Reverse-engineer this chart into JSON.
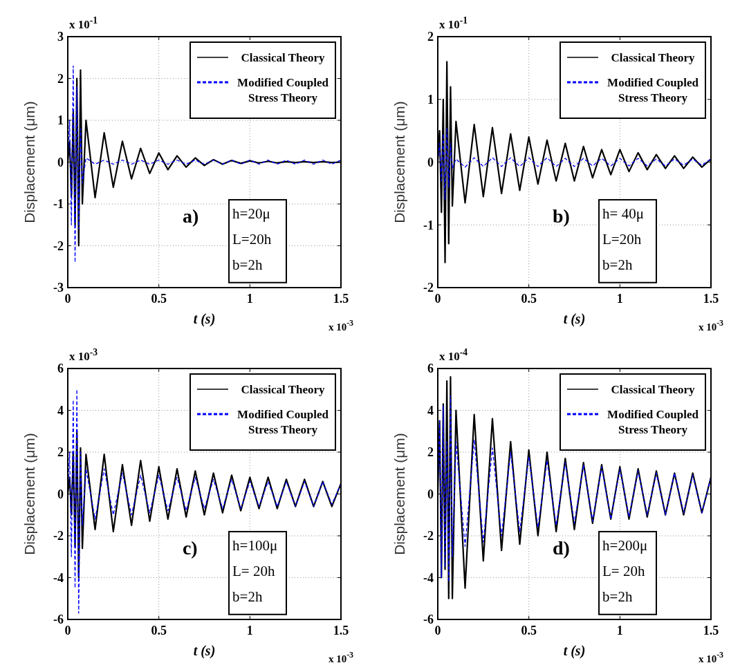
{
  "chart_data": [
    {
      "type": "line",
      "xlabel": "t (s)",
      "ylabel": "Displacement (μm)",
      "xlim": [
        0,
        1.5
      ],
      "xticks": [
        0,
        0.5,
        1,
        1.5
      ],
      "ylim": [
        -3,
        3
      ],
      "yticks": [
        -3,
        -2,
        -1,
        0,
        1,
        2,
        3
      ],
      "grid": true,
      "legend": "top right",
      "annotations": [
        "x 10$^{-1}$",
        "x 10$^{-3}$",
        "a)",
        "h=20μ",
        "L=20h",
        "b=2h"
      ],
      "x": [
        0,
        0.01,
        0.02,
        0.03,
        0.04,
        0.05,
        0.06,
        0.07,
        0.08,
        0.1,
        0.15,
        0.2,
        0.25,
        0.3,
        0.35,
        0.4,
        0.45,
        0.5,
        0.55,
        0.6,
        0.65,
        0.7,
        0.75,
        0.8,
        0.85,
        0.9,
        0.95,
        1.0,
        1.05,
        1.1,
        1.15,
        1.2,
        1.25,
        1.3,
        1.35,
        1.4,
        1.45,
        1.5
      ],
      "series": [
        {
          "name": "Classical Theory",
          "color": "#000000",
          "line_style": "solid",
          "values": [
            0,
            0.5,
            -0.8,
            1.2,
            -1.5,
            2.0,
            -2.0,
            2.2,
            -1.0,
            1.0,
            -0.85,
            0.7,
            -0.6,
            0.5,
            -0.4,
            0.33,
            -0.27,
            0.22,
            -0.18,
            0.15,
            -0.12,
            0.1,
            -0.08,
            0.06,
            -0.05,
            0.04,
            -0.03,
            0.03,
            -0.02,
            0.02,
            -0.02,
            0.01,
            -0.01,
            0.01,
            -0.01,
            0.01,
            -0.01,
            0
          ]
        },
        {
          "name": "Modified Coupled Stress Theory",
          "color": "#0000ff",
          "line_style": "dashed",
          "values": [
            0,
            1.0,
            -1.5,
            2.3,
            -2.4,
            1.8,
            -1.6,
            0.8,
            -0.5,
            0.1,
            -0.05,
            0.05,
            -0.05,
            0.05,
            -0.05,
            0.05,
            -0.05,
            0.05,
            -0.05,
            0.05,
            -0.05,
            0.05,
            -0.05,
            0.05,
            -0.05,
            0.05,
            -0.05,
            0.05,
            -0.05,
            0.05,
            -0.05,
            0.05,
            -0.05,
            0.05,
            -0.05,
            0.05,
            -0.05,
            0.05
          ]
        }
      ]
    },
    {
      "type": "line",
      "xlabel": "t (s)",
      "ylabel": "Displacement (μm)",
      "xlim": [
        0,
        1.5
      ],
      "xticks": [
        0,
        0.5,
        1,
        1.5
      ],
      "ylim": [
        -2,
        2
      ],
      "yticks": [
        -2,
        -1,
        0,
        1,
        2
      ],
      "grid": true,
      "legend": "top right",
      "annotations": [
        "x 10$^{-1}$",
        "x 10$^{-3}$",
        "b)",
        "h= 40μ",
        "L=20h",
        "b=2h"
      ],
      "x": [
        0,
        0.01,
        0.02,
        0.03,
        0.04,
        0.05,
        0.06,
        0.07,
        0.08,
        0.1,
        0.15,
        0.2,
        0.25,
        0.3,
        0.35,
        0.4,
        0.45,
        0.5,
        0.55,
        0.6,
        0.65,
        0.7,
        0.75,
        0.8,
        0.85,
        0.9,
        0.95,
        1.0,
        1.05,
        1.1,
        1.15,
        1.2,
        1.25,
        1.3,
        1.35,
        1.4,
        1.45,
        1.5
      ],
      "series": [
        {
          "name": "Classical Theory",
          "color": "#000000",
          "line_style": "solid",
          "values": [
            0,
            0.5,
            -0.8,
            1.0,
            -1.6,
            1.6,
            -1.3,
            1.2,
            -0.7,
            0.65,
            -0.65,
            0.6,
            -0.55,
            0.55,
            -0.5,
            0.45,
            -0.45,
            0.4,
            -0.35,
            0.35,
            -0.3,
            0.3,
            -0.3,
            0.25,
            -0.25,
            0.2,
            -0.2,
            0.2,
            -0.15,
            0.15,
            -0.12,
            0.12,
            -0.1,
            0.1,
            -0.1,
            0.08,
            -0.08,
            0.05
          ]
        },
        {
          "name": "Modified Coupled Stress Theory",
          "color": "#0000ff",
          "line_style": "dashed",
          "values": [
            0,
            0.3,
            -0.3,
            0.45,
            -0.6,
            0.55,
            -0.4,
            0.3,
            -0.1,
            0.05,
            -0.08,
            0.07,
            -0.07,
            0.07,
            -0.07,
            0.07,
            -0.07,
            0.07,
            -0.07,
            0.07,
            -0.07,
            0.06,
            -0.07,
            0.06,
            -0.06,
            0.06,
            -0.06,
            0.06,
            -0.06,
            0.06,
            -0.06,
            0.05,
            -0.06,
            0.05,
            -0.05,
            0.05,
            -0.05,
            0.05
          ]
        }
      ]
    },
    {
      "type": "line",
      "xlabel": "t (s)",
      "ylabel": "Displacement (μm)",
      "xlim": [
        0,
        1.5
      ],
      "xticks": [
        0,
        0.5,
        1,
        1.5
      ],
      "ylim": [
        -6,
        6
      ],
      "yticks": [
        -6,
        -4,
        -2,
        0,
        2,
        4,
        6
      ],
      "grid": true,
      "legend": "top right",
      "annotations": [
        "x 10$^{-3}$",
        "x 10$^{-3}$",
        "c)",
        "h=100μ",
        "L= 20h",
        "b=2h"
      ],
      "x": [
        0,
        0.01,
        0.02,
        0.03,
        0.04,
        0.05,
        0.06,
        0.07,
        0.08,
        0.1,
        0.15,
        0.2,
        0.25,
        0.3,
        0.35,
        0.4,
        0.45,
        0.5,
        0.55,
        0.6,
        0.65,
        0.7,
        0.75,
        0.8,
        0.85,
        0.9,
        0.95,
        1.0,
        1.05,
        1.1,
        1.15,
        1.2,
        1.25,
        1.3,
        1.35,
        1.4,
        1.45,
        1.5
      ],
      "series": [
        {
          "name": "Classical Theory",
          "color": "#000000",
          "line_style": "solid",
          "values": [
            0,
            0.8,
            -1.0,
            2.0,
            -2.5,
            3.0,
            -4.0,
            2.2,
            -2.6,
            1.9,
            -1.7,
            1.9,
            -1.8,
            1.4,
            -1.5,
            1.6,
            -1.3,
            1.3,
            -1.2,
            1.2,
            -1.1,
            1.1,
            -1.0,
            1.0,
            -0.9,
            0.9,
            -0.8,
            0.8,
            -0.7,
            0.8,
            -0.7,
            0.7,
            -0.6,
            0.7,
            -0.6,
            0.6,
            -0.6,
            0.5
          ]
        },
        {
          "name": "Modified Coupled Stress Theory",
          "color": "#0000ff",
          "line_style": "dashed",
          "values": [
            0,
            2.0,
            -3.0,
            4.5,
            -4.5,
            5.0,
            -5.7,
            2.0,
            -1.5,
            1.2,
            -1.2,
            1.2,
            -1.0,
            1.0,
            -1.0,
            0.9,
            -0.9,
            0.9,
            -0.8,
            0.8,
            -0.8,
            0.8,
            -0.7,
            0.7,
            -0.7,
            0.7,
            -0.7,
            0.6,
            -0.6,
            0.6,
            -0.6,
            0.6,
            -0.6,
            0.6,
            -0.6,
            0.6,
            -0.5,
            0.5
          ]
        }
      ]
    },
    {
      "type": "line",
      "xlabel": "t (s)",
      "ylabel": "Displacement (μm)",
      "xlim": [
        0,
        1.5
      ],
      "xticks": [
        0,
        0.5,
        1,
        1.5
      ],
      "ylim": [
        -6,
        6
      ],
      "yticks": [
        -6,
        -4,
        -2,
        0,
        2,
        4,
        6
      ],
      "grid": true,
      "legend": "top right",
      "annotations": [
        "x 10$^{-4}$",
        "x 10$^{-3}$",
        "d)",
        "h=200μ",
        "L= 20h",
        "b=2h"
      ],
      "x": [
        0,
        0.01,
        0.02,
        0.03,
        0.04,
        0.05,
        0.06,
        0.07,
        0.08,
        0.1,
        0.15,
        0.2,
        0.25,
        0.3,
        0.35,
        0.4,
        0.45,
        0.5,
        0.55,
        0.6,
        0.65,
        0.7,
        0.75,
        0.8,
        0.85,
        0.9,
        0.95,
        1.0,
        1.05,
        1.1,
        1.15,
        1.2,
        1.25,
        1.3,
        1.35,
        1.4,
        1.45,
        1.5
      ],
      "series": [
        {
          "name": "Classical Theory",
          "color": "#000000",
          "line_style": "solid",
          "values": [
            0,
            3.5,
            -4.0,
            4.3,
            -3.6,
            5.4,
            -5.0,
            5.6,
            -5.0,
            4.0,
            -4.5,
            3.8,
            -3.2,
            3.6,
            -2.7,
            2.5,
            -2.4,
            2.1,
            -2.0,
            2.0,
            -1.8,
            1.7,
            -1.7,
            1.5,
            -1.4,
            1.4,
            -1.2,
            1.3,
            -1.2,
            1.2,
            -1.1,
            1.1,
            -1.0,
            1.0,
            -1.0,
            1.0,
            -0.9,
            0.8
          ]
        },
        {
          "name": "Modified Coupled Stress Theory",
          "color": "#0000ff",
          "line_style": "dashed",
          "values": [
            0,
            3.5,
            -4.0,
            4.2,
            -3.5,
            2.5,
            -4.2,
            4.7,
            -3.0,
            2.5,
            -2.5,
            2.6,
            -2.3,
            2.2,
            -2.0,
            2.0,
            -1.8,
            1.8,
            -1.6,
            1.6,
            -1.5,
            1.5,
            -1.4,
            1.4,
            -1.3,
            1.3,
            -1.2,
            1.2,
            -1.1,
            1.1,
            -1.0,
            1.0,
            -1.0,
            1.0,
            -0.9,
            0.9,
            -0.9,
            0.8
          ]
        }
      ]
    }
  ]
}
